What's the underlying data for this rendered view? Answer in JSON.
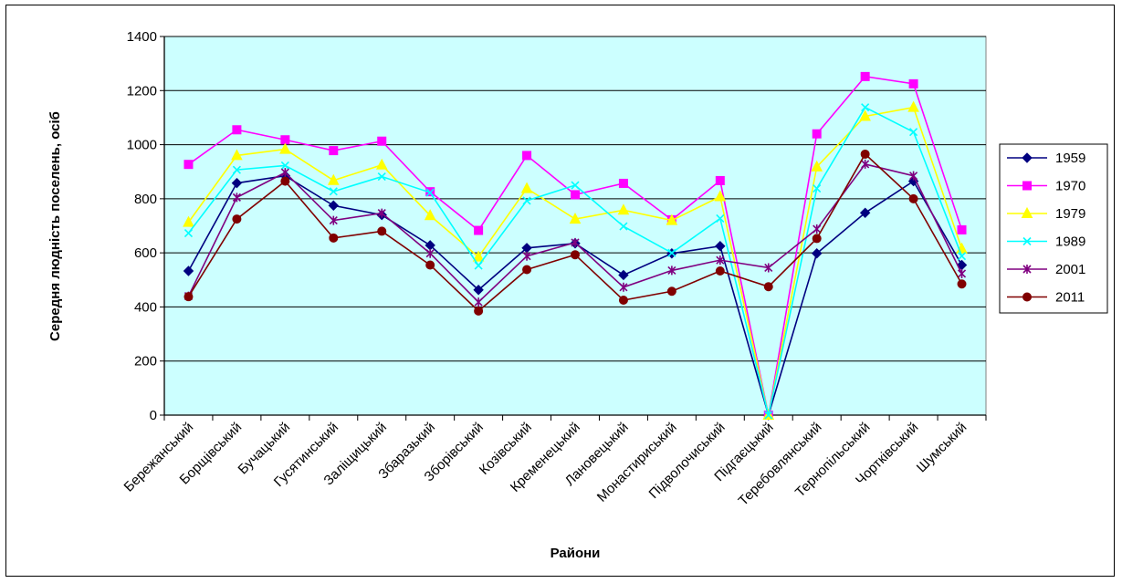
{
  "chart_data": {
    "type": "line",
    "title": "",
    "xlabel": "Райони",
    "ylabel": "Середня людність поселень, осіб",
    "ylim": [
      0,
      1400
    ],
    "yticks": [
      0,
      200,
      400,
      600,
      800,
      1000,
      1200,
      1400
    ],
    "grid": true,
    "legend_position": "right",
    "plot_background": "#ccffff",
    "categories": [
      "Бережанський",
      "Борщівський",
      "Бучацький",
      "Гусятинський",
      "Заліщицький",
      "Збаразький",
      "Зборівський",
      "Козівський",
      "Кременецький",
      "Лановецький",
      "Монастириський",
      "Підволочиський",
      "Підгаєцький",
      "Теребовлянський",
      "Тернопільський",
      "Чортківський",
      "Шумський"
    ],
    "series": [
      {
        "name": "1959",
        "color": "#000080",
        "marker": "diamond",
        "values": [
          533,
          858,
          885,
          775,
          740,
          628,
          463,
          618,
          635,
          518,
          598,
          625,
          0,
          598,
          748,
          865,
          555
        ]
      },
      {
        "name": "1970",
        "color": "#ff00ff",
        "marker": "square",
        "values": [
          927,
          1055,
          1018,
          978,
          1013,
          826,
          683,
          960,
          815,
          857,
          722,
          867,
          0,
          1040,
          1252,
          1225,
          685
        ]
      },
      {
        "name": "1979",
        "color": "#ffff00",
        "marker": "triangle",
        "values": [
          713,
          960,
          983,
          868,
          925,
          738,
          585,
          838,
          725,
          758,
          720,
          808,
          0,
          918,
          1105,
          1138,
          615
        ]
      },
      {
        "name": "1989",
        "color": "#00ffff",
        "marker": "x",
        "values": [
          673,
          907,
          923,
          827,
          882,
          823,
          553,
          793,
          850,
          698,
          600,
          727,
          0,
          838,
          1138,
          1047,
          588
        ]
      },
      {
        "name": "2001",
        "color": "#800080",
        "marker": "star",
        "values": [
          440,
          805,
          897,
          720,
          747,
          598,
          418,
          588,
          638,
          473,
          535,
          573,
          545,
          688,
          928,
          885,
          523
        ]
      },
      {
        "name": "2011",
        "color": "#800000",
        "marker": "circle",
        "values": [
          438,
          725,
          865,
          655,
          680,
          555,
          385,
          538,
          593,
          425,
          458,
          533,
          475,
          653,
          965,
          800,
          485
        ]
      }
    ]
  }
}
